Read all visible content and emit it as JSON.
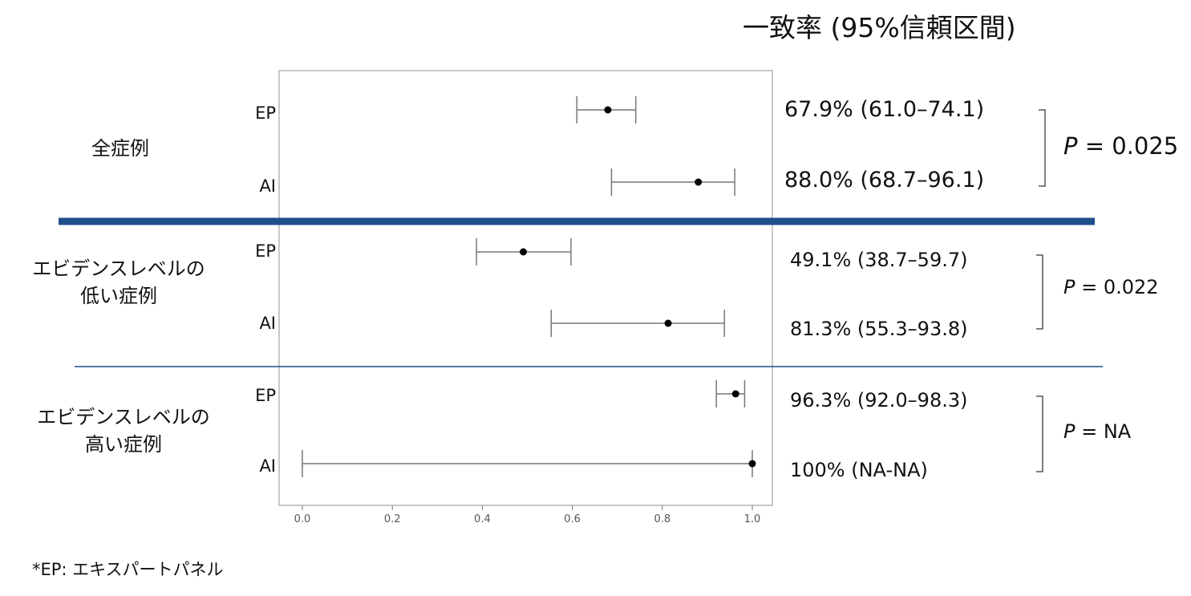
{
  "header": {
    "title": "一致率 (95%信頼区間)"
  },
  "footnote": "*EP: エキスパートパネル",
  "colors": {
    "divider": "#1f4e8c",
    "plot_border": "#b5b5b5",
    "error_bar": "#777777",
    "point": "#000000"
  },
  "chart_data": {
    "type": "forest",
    "xlim": [
      0,
      1.0
    ],
    "x_ticks": [
      "0.0",
      "0.2",
      "0.4",
      "0.6",
      "0.8",
      "1.0"
    ],
    "x_tick_values": [
      0,
      0.2,
      0.4,
      0.6,
      0.8,
      1.0
    ],
    "groups": [
      {
        "label": "全症例",
        "label_lines": [
          "全症例"
        ],
        "p_prefix": "P",
        "p_value": " = 0.025",
        "rows": [
          {
            "label": "EP",
            "estimate": 0.679,
            "lower": 0.61,
            "upper": 0.741,
            "ci_text": "67.9% (61.0–74.1)"
          },
          {
            "label": "AI",
            "estimate": 0.88,
            "lower": 0.687,
            "upper": 0.961,
            "ci_text": "88.0% (68.7–96.1)"
          }
        ]
      },
      {
        "label": "エビデンスレベルの低い症例",
        "label_lines": [
          "エビデンスレベルの",
          "低い症例"
        ],
        "p_prefix": "P",
        "p_value": " = 0.022",
        "rows": [
          {
            "label": "EP",
            "estimate": 0.491,
            "lower": 0.387,
            "upper": 0.597,
            "ci_text": "49.1% (38.7–59.7)"
          },
          {
            "label": "AI",
            "estimate": 0.813,
            "lower": 0.553,
            "upper": 0.938,
            "ci_text": "81.3% (55.3–93.8)"
          }
        ]
      },
      {
        "label": "エビデンスレベルの高い症例",
        "label_lines": [
          "エビデンスレベルの",
          "高い症例"
        ],
        "p_prefix": "P",
        "p_value": " = NA",
        "rows": [
          {
            "label": "EP",
            "estimate": 0.963,
            "lower": 0.92,
            "upper": 0.983,
            "ci_text": "96.3% (92.0–98.3)"
          },
          {
            "label": "AI",
            "estimate": 1.0,
            "lower": 0.0,
            "upper": 1.0,
            "ci_text": "100% (NA-NA)"
          }
        ]
      }
    ]
  }
}
